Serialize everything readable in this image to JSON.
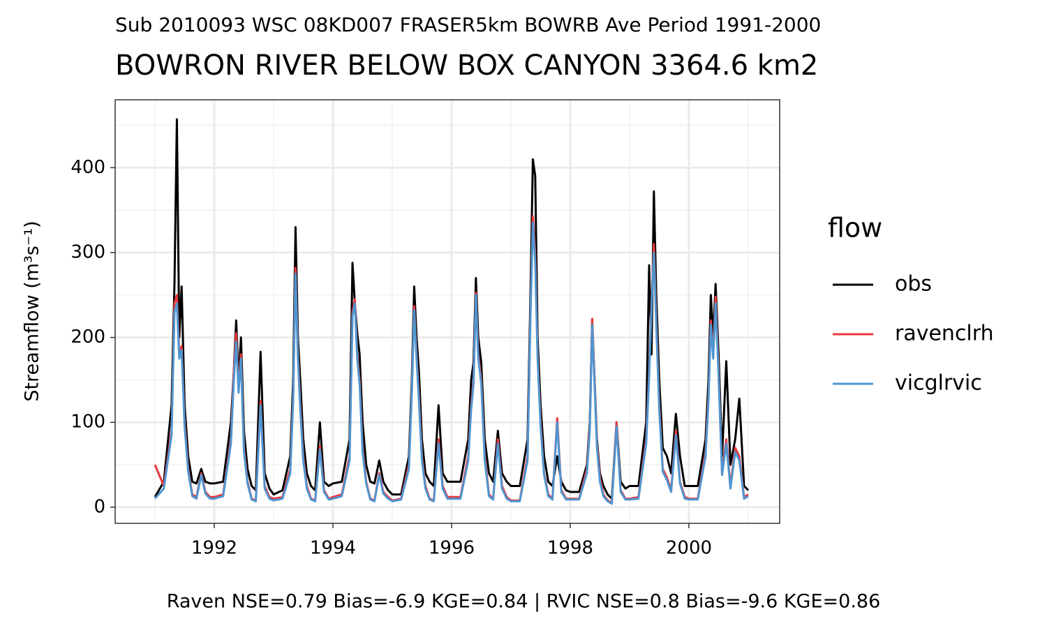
{
  "chart_data": {
    "type": "line",
    "subtitle": "Sub 2010093 WSC 08KD007 FRASER5km BOWRB Ave Period 1991-2000",
    "title": "BOWRON RIVER BELOW BOX CANYON 3364.6 km2",
    "ylabel": "Streamflow (m³s⁻¹)",
    "caption": "Raven NSE=0.79 Bias=-6.9 KGE=0.84 | RVIC NSE=0.8 Bias=-9.6 KGE=0.86",
    "legend_title": "flow",
    "legend": "right",
    "grid": true,
    "xlim": [
      1990.33,
      2001.53
    ],
    "xticks": [
      1992,
      1994,
      1996,
      1998,
      2000
    ],
    "ylim": [
      -19,
      480
    ],
    "yticks": [
      0,
      100,
      200,
      300,
      400
    ],
    "x": [
      1991,
      1991.15,
      1991.28,
      1991.33,
      1991.37,
      1991.41,
      1991.45,
      1991.5,
      1991.56,
      1991.63,
      1991.7,
      1991.78,
      1991.85,
      1991.93,
      1992,
      1992.15,
      1992.28,
      1992.33,
      1992.37,
      1992.41,
      1992.45,
      1992.5,
      1992.56,
      1992.63,
      1992.7,
      1992.78,
      1992.85,
      1992.93,
      1993,
      1993.15,
      1993.28,
      1993.33,
      1993.37,
      1993.41,
      1993.45,
      1993.5,
      1993.56,
      1993.63,
      1993.7,
      1993.78,
      1993.85,
      1993.93,
      1994,
      1994.15,
      1994.28,
      1994.33,
      1994.37,
      1994.41,
      1994.45,
      1994.5,
      1994.56,
      1994.63,
      1994.7,
      1994.78,
      1994.85,
      1994.93,
      1995,
      1995.15,
      1995.28,
      1995.33,
      1995.37,
      1995.41,
      1995.45,
      1995.5,
      1995.56,
      1995.63,
      1995.7,
      1995.78,
      1995.85,
      1995.93,
      1996,
      1996.15,
      1996.28,
      1996.33,
      1996.37,
      1996.41,
      1996.45,
      1996.5,
      1996.56,
      1996.63,
      1996.7,
      1996.78,
      1996.85,
      1996.93,
      1997,
      1997.15,
      1997.28,
      1997.33,
      1997.37,
      1997.41,
      1997.45,
      1997.5,
      1997.56,
      1997.63,
      1997.7,
      1997.78,
      1997.85,
      1997.93,
      1998,
      1998.15,
      1998.28,
      1998.33,
      1998.37,
      1998.41,
      1998.45,
      1998.5,
      1998.56,
      1998.63,
      1998.7,
      1998.78,
      1998.85,
      1998.93,
      1999,
      1999.15,
      1999.28,
      1999.33,
      1999.37,
      1999.41,
      1999.45,
      1999.5,
      1999.56,
      1999.63,
      1999.7,
      1999.78,
      1999.85,
      1999.93,
      2000,
      2000.15,
      2000.28,
      2000.33,
      2000.37,
      2000.41,
      2000.45,
      2000.5,
      2000.56,
      2000.63,
      2000.7,
      2000.78,
      2000.85,
      2000.93,
      2001
    ],
    "series": [
      {
        "name": "obs",
        "color": "#000000",
        "values": [
          12,
          30,
          120,
          265,
          457,
          200,
          260,
          120,
          60,
          30,
          28,
          45,
          30,
          28,
          28,
          30,
          100,
          160,
          220,
          150,
          200,
          90,
          45,
          25,
          20,
          183,
          40,
          22,
          15,
          20,
          60,
          150,
          330,
          200,
          150,
          80,
          40,
          25,
          20,
          100,
          30,
          25,
          28,
          30,
          80,
          288,
          240,
          205,
          180,
          100,
          50,
          30,
          28,
          55,
          30,
          20,
          15,
          15,
          60,
          150,
          260,
          200,
          160,
          80,
          40,
          30,
          25,
          120,
          40,
          30,
          30,
          30,
          80,
          150,
          170,
          270,
          200,
          170,
          80,
          40,
          30,
          90,
          40,
          30,
          25,
          25,
          80,
          250,
          410,
          390,
          200,
          120,
          60,
          30,
          25,
          60,
          30,
          20,
          18,
          18,
          50,
          100,
          220,
          150,
          80,
          40,
          25,
          15,
          10,
          100,
          30,
          22,
          25,
          25,
          100,
          285,
          180,
          372,
          250,
          150,
          70,
          60,
          40,
          110,
          60,
          25,
          25,
          25,
          80,
          150,
          250,
          200,
          263,
          180,
          60,
          172,
          50,
          80,
          128,
          25,
          20
        ]
      },
      {
        "name": "ravenclrh",
        "color": "#e8383d",
        "values": [
          50,
          25,
          90,
          240,
          250,
          180,
          190,
          100,
          45,
          15,
          12,
          40,
          18,
          12,
          12,
          15,
          80,
          160,
          205,
          140,
          180,
          70,
          30,
          10,
          8,
          125,
          25,
          12,
          10,
          12,
          45,
          130,
          282,
          180,
          120,
          60,
          25,
          10,
          8,
          72,
          20,
          10,
          12,
          15,
          60,
          230,
          245,
          180,
          150,
          70,
          30,
          10,
          8,
          40,
          18,
          12,
          8,
          10,
          50,
          140,
          237,
          180,
          130,
          60,
          25,
          10,
          8,
          80,
          25,
          12,
          12,
          12,
          60,
          120,
          150,
          253,
          180,
          150,
          60,
          15,
          10,
          80,
          25,
          12,
          8,
          8,
          60,
          230,
          343,
          300,
          180,
          100,
          40,
          15,
          10,
          105,
          20,
          10,
          10,
          10,
          45,
          95,
          222,
          150,
          75,
          35,
          15,
          8,
          5,
          100,
          20,
          10,
          10,
          12,
          80,
          160,
          240,
          310,
          220,
          120,
          45,
          35,
          20,
          90,
          30,
          12,
          10,
          10,
          65,
          130,
          220,
          180,
          248,
          160,
          40,
          80,
          25,
          70,
          60,
          12,
          15
        ]
      },
      {
        "name": "vicglrvic",
        "color": "#4f95d0",
        "values": [
          10,
          22,
          85,
          230,
          240,
          175,
          185,
          95,
          42,
          13,
          10,
          38,
          16,
          10,
          10,
          13,
          75,
          150,
          195,
          135,
          175,
          65,
          28,
          9,
          7,
          120,
          22,
          10,
          8,
          10,
          40,
          125,
          275,
          175,
          115,
          55,
          22,
          9,
          7,
          68,
          18,
          9,
          10,
          13,
          55,
          225,
          240,
          175,
          145,
          65,
          28,
          9,
          7,
          38,
          16,
          10,
          7,
          9,
          45,
          135,
          232,
          175,
          125,
          55,
          22,
          9,
          7,
          75,
          22,
          10,
          10,
          10,
          55,
          115,
          145,
          250,
          175,
          145,
          55,
          13,
          9,
          75,
          22,
          10,
          7,
          7,
          55,
          225,
          335,
          290,
          175,
          95,
          38,
          13,
          9,
          100,
          18,
          9,
          9,
          9,
          40,
          90,
          215,
          145,
          70,
          30,
          13,
          7,
          4,
          95,
          18,
          9,
          9,
          10,
          75,
          155,
          235,
          300,
          215,
          115,
          42,
          32,
          18,
          85,
          28,
          10,
          9,
          9,
          60,
          125,
          215,
          175,
          240,
          155,
          38,
          75,
          22,
          65,
          55,
          10,
          13
        ]
      }
    ]
  }
}
